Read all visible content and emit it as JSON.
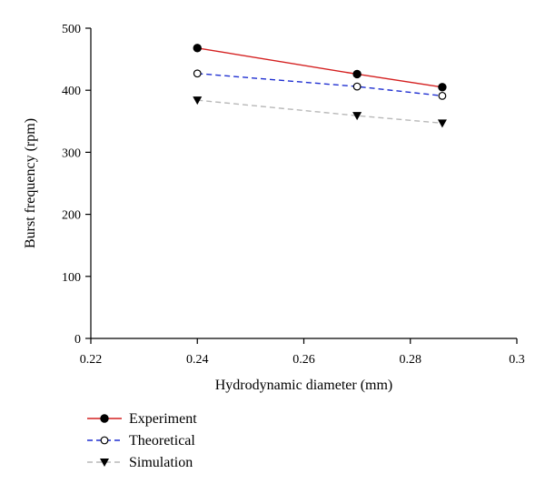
{
  "chart_data": {
    "type": "line",
    "title": "",
    "xlabel": "Hydrodynamic diameter (mm)",
    "ylabel": "Burst frequency (rpm)",
    "xlim": [
      0.22,
      0.3
    ],
    "ylim": [
      0,
      500
    ],
    "xticks": [
      0.22,
      0.24,
      0.26,
      0.28,
      0.3
    ],
    "xtick_labels": [
      "0.22",
      "0.24",
      "0.26",
      "0.28",
      "0.3"
    ],
    "yticks": [
      0,
      100,
      200,
      300,
      400,
      500
    ],
    "ytick_labels": [
      "0",
      "100",
      "200",
      "300",
      "400",
      "500"
    ],
    "grid": false,
    "legend_placement": "bottom-left, below plot",
    "x": [
      0.24,
      0.27,
      0.286
    ],
    "series": [
      {
        "name": "Experiment",
        "values": [
          468,
          426,
          405
        ],
        "color": "#d42020",
        "line_style": "solid",
        "marker": "filled-circle"
      },
      {
        "name": "Theoretical",
        "values": [
          427,
          406,
          391
        ],
        "color": "#1f2fd1",
        "line_style": "dashed",
        "marker": "open-circle"
      },
      {
        "name": "Simulation",
        "values": [
          384,
          359,
          347
        ],
        "color": "#b8b8b8",
        "line_style": "dashed",
        "marker": "filled-triangle-down"
      }
    ]
  }
}
